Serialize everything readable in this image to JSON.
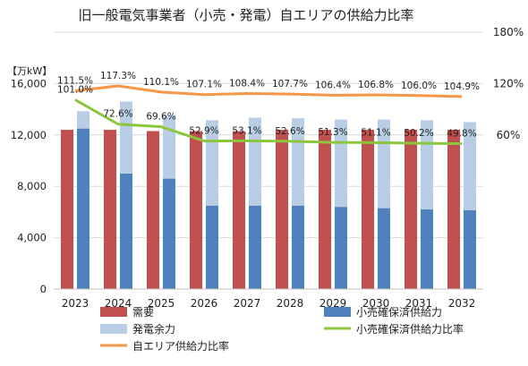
{
  "chart_data": {
    "type": "bar",
    "title": "旧一般電気事業者（小売・発電）自エリアの供給力比率",
    "unit_label": "【万kW】",
    "categories": [
      "2023",
      "2024",
      "2025",
      "2026",
      "2027",
      "2028",
      "2029",
      "2030",
      "2031",
      "2032"
    ],
    "y_left": {
      "min": 0,
      "max": 20000,
      "ticks": [
        "0",
        "4,000",
        "8,000",
        "12,000",
        "16,000"
      ],
      "tick_values": [
        0,
        4000,
        8000,
        12000,
        16000
      ]
    },
    "y_right": {
      "min": -120,
      "max": 180,
      "ticks": [
        "60%",
        "120%",
        "180%"
      ],
      "tick_values": [
        60,
        120,
        180
      ]
    },
    "grid": true,
    "legend_position": "bottom",
    "series": [
      {
        "name": "需要",
        "kind": "bar",
        "color": "#c0504d",
        "values": [
          12400,
          12400,
          12300,
          12300,
          12300,
          12400,
          12400,
          12400,
          12400,
          12400
        ]
      },
      {
        "name": "小売確保済供給力",
        "kind": "bar",
        "color": "#4f81bd",
        "values": [
          12500,
          9000,
          8600,
          6500,
          6500,
          6500,
          6400,
          6300,
          6200,
          6150
        ]
      },
      {
        "name": "発電余力",
        "kind": "bar-stacked",
        "color": "#b9cde5",
        "values": [
          1350,
          5600,
          4900,
          6650,
          6850,
          6800,
          6800,
          6900,
          6950,
          6850
        ]
      },
      {
        "name": "小売確保済供給力比率",
        "kind": "line",
        "color": "#8cc63f",
        "values": [
          101.0,
          72.6,
          69.6,
          52.9,
          53.1,
          52.6,
          51.3,
          51.1,
          50.2,
          49.8
        ],
        "labels": [
          "101.0%",
          "72.6%",
          "69.6%",
          "52.9%",
          "53.1%",
          "52.6%",
          "51.3%",
          "51.1%",
          "50.2%",
          "49.8%"
        ]
      },
      {
        "name": "自エリア供給力比率",
        "kind": "line",
        "color": "#f79646",
        "values": [
          111.5,
          117.3,
          110.1,
          107.1,
          108.4,
          107.7,
          106.4,
          106.8,
          106.0,
          104.9
        ],
        "labels": [
          "111.5%",
          "117.3%",
          "110.1%",
          "107.1%",
          "108.4%",
          "107.7%",
          "106.4%",
          "106.8%",
          "106.0%",
          "104.9%"
        ]
      }
    ]
  }
}
